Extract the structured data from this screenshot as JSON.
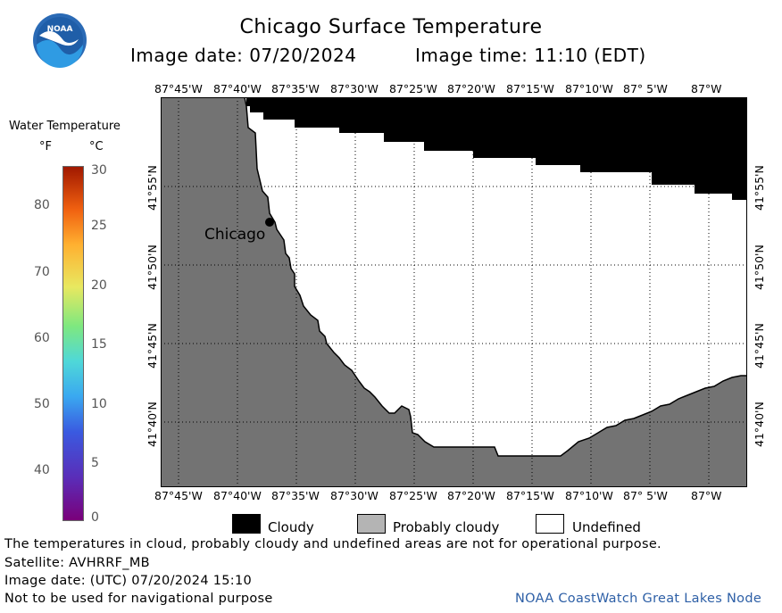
{
  "header": {
    "title": "Chicago Surface Temperature",
    "image_date": "Image date: 07/20/2024",
    "image_time": "Image time: 11:10 (EDT)"
  },
  "logo": {
    "text": "NOAA",
    "icon": "noaa-logo"
  },
  "map": {
    "lon_labels": [
      "87°45'W",
      "87°40'W",
      "87°35'W",
      "87°30'W",
      "87°25'W",
      "87°20'W",
      "87°15'W",
      "87°10'W",
      "87° 5'W",
      "87°W"
    ],
    "lat_labels": [
      "41°55'N",
      "41°50'N",
      "41°45'N",
      "41°40'N"
    ],
    "city_label": "Chicago",
    "colors": {
      "land": "#737373",
      "cloudy": "#000000",
      "undefined": "#ffffff",
      "probably_cloudy": "#b4b4b4"
    }
  },
  "legend": {
    "title": "Water Temperature",
    "unit_f": "°F",
    "unit_c": "°C",
    "f_ticks": [
      "80",
      "70",
      "60",
      "50",
      "40"
    ],
    "c_ticks": [
      "30",
      "25",
      "20",
      "15",
      "10",
      "5",
      "0"
    ]
  },
  "key": {
    "cloudy": "Cloudy",
    "probably_cloudy": "Probably cloudy",
    "undefined": "Undefined"
  },
  "footer": {
    "disclaimer": "The temperatures in cloud, probably cloudy and undefined areas are not for operational purpose.",
    "satellite": "Satellite: AVHRRF_MB",
    "utc_date": "Image date: (UTC) 07/20/2024  15:10",
    "nav_warning": "Not to be used for navigational purpose",
    "source": "NOAA CoastWatch Great Lakes Node"
  }
}
